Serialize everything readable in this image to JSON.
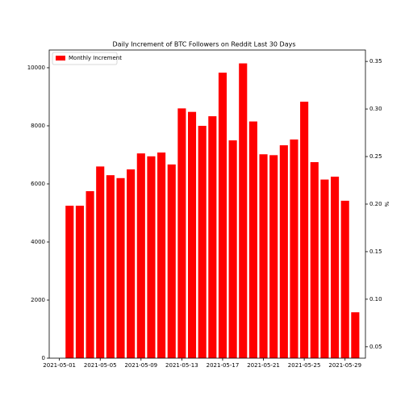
{
  "chart_data": {
    "type": "bar",
    "title": "Daily Increment of BTC Followers on Reddit Last 30 Days",
    "y2label": "%",
    "x": [
      "2021-05-02",
      "2021-05-03",
      "2021-05-04",
      "2021-05-05",
      "2021-05-06",
      "2021-05-07",
      "2021-05-08",
      "2021-05-09",
      "2021-05-10",
      "2021-05-11",
      "2021-05-12",
      "2021-05-13",
      "2021-05-14",
      "2021-05-15",
      "2021-05-16",
      "2021-05-17",
      "2021-05-18",
      "2021-05-19",
      "2021-05-20",
      "2021-05-21",
      "2021-05-22",
      "2021-05-23",
      "2021-05-24",
      "2021-05-25",
      "2021-05-26",
      "2021-05-27",
      "2021-05-28",
      "2021-05-29",
      "2021-05-30"
    ],
    "series": [
      {
        "name": "Monthly Increment",
        "color": "#ff0000",
        "values": [
          5250,
          5250,
          5750,
          6600,
          6300,
          6200,
          6500,
          7050,
          6950,
          7080,
          6670,
          8600,
          8480,
          8000,
          8330,
          9830,
          7500,
          10150,
          8150,
          7020,
          6990,
          7330,
          7530,
          8830,
          6750,
          6150,
          6250,
          5420,
          1580
        ]
      }
    ],
    "xlim": [
      "2021-04-30",
      "2021-05-31"
    ],
    "xticks": [
      "2021-05-01",
      "2021-05-05",
      "2021-05-09",
      "2021-05-13",
      "2021-05-17",
      "2021-05-21",
      "2021-05-25",
      "2021-05-29"
    ],
    "ylim": [
      0,
      10610
    ],
    "yticks": [
      0,
      2000,
      4000,
      6000,
      8000,
      10000
    ],
    "y2lim": [
      0.038,
      0.362
    ],
    "y2ticks": [
      0.05,
      {
        "value": 0.1,
        "label": "0.10"
      },
      0.15,
      {
        "value": 0.2,
        "label": "0.20"
      },
      0.25,
      {
        "value": 0.3,
        "label": "0.30"
      },
      0.35
    ],
    "legend": "upper left"
  }
}
